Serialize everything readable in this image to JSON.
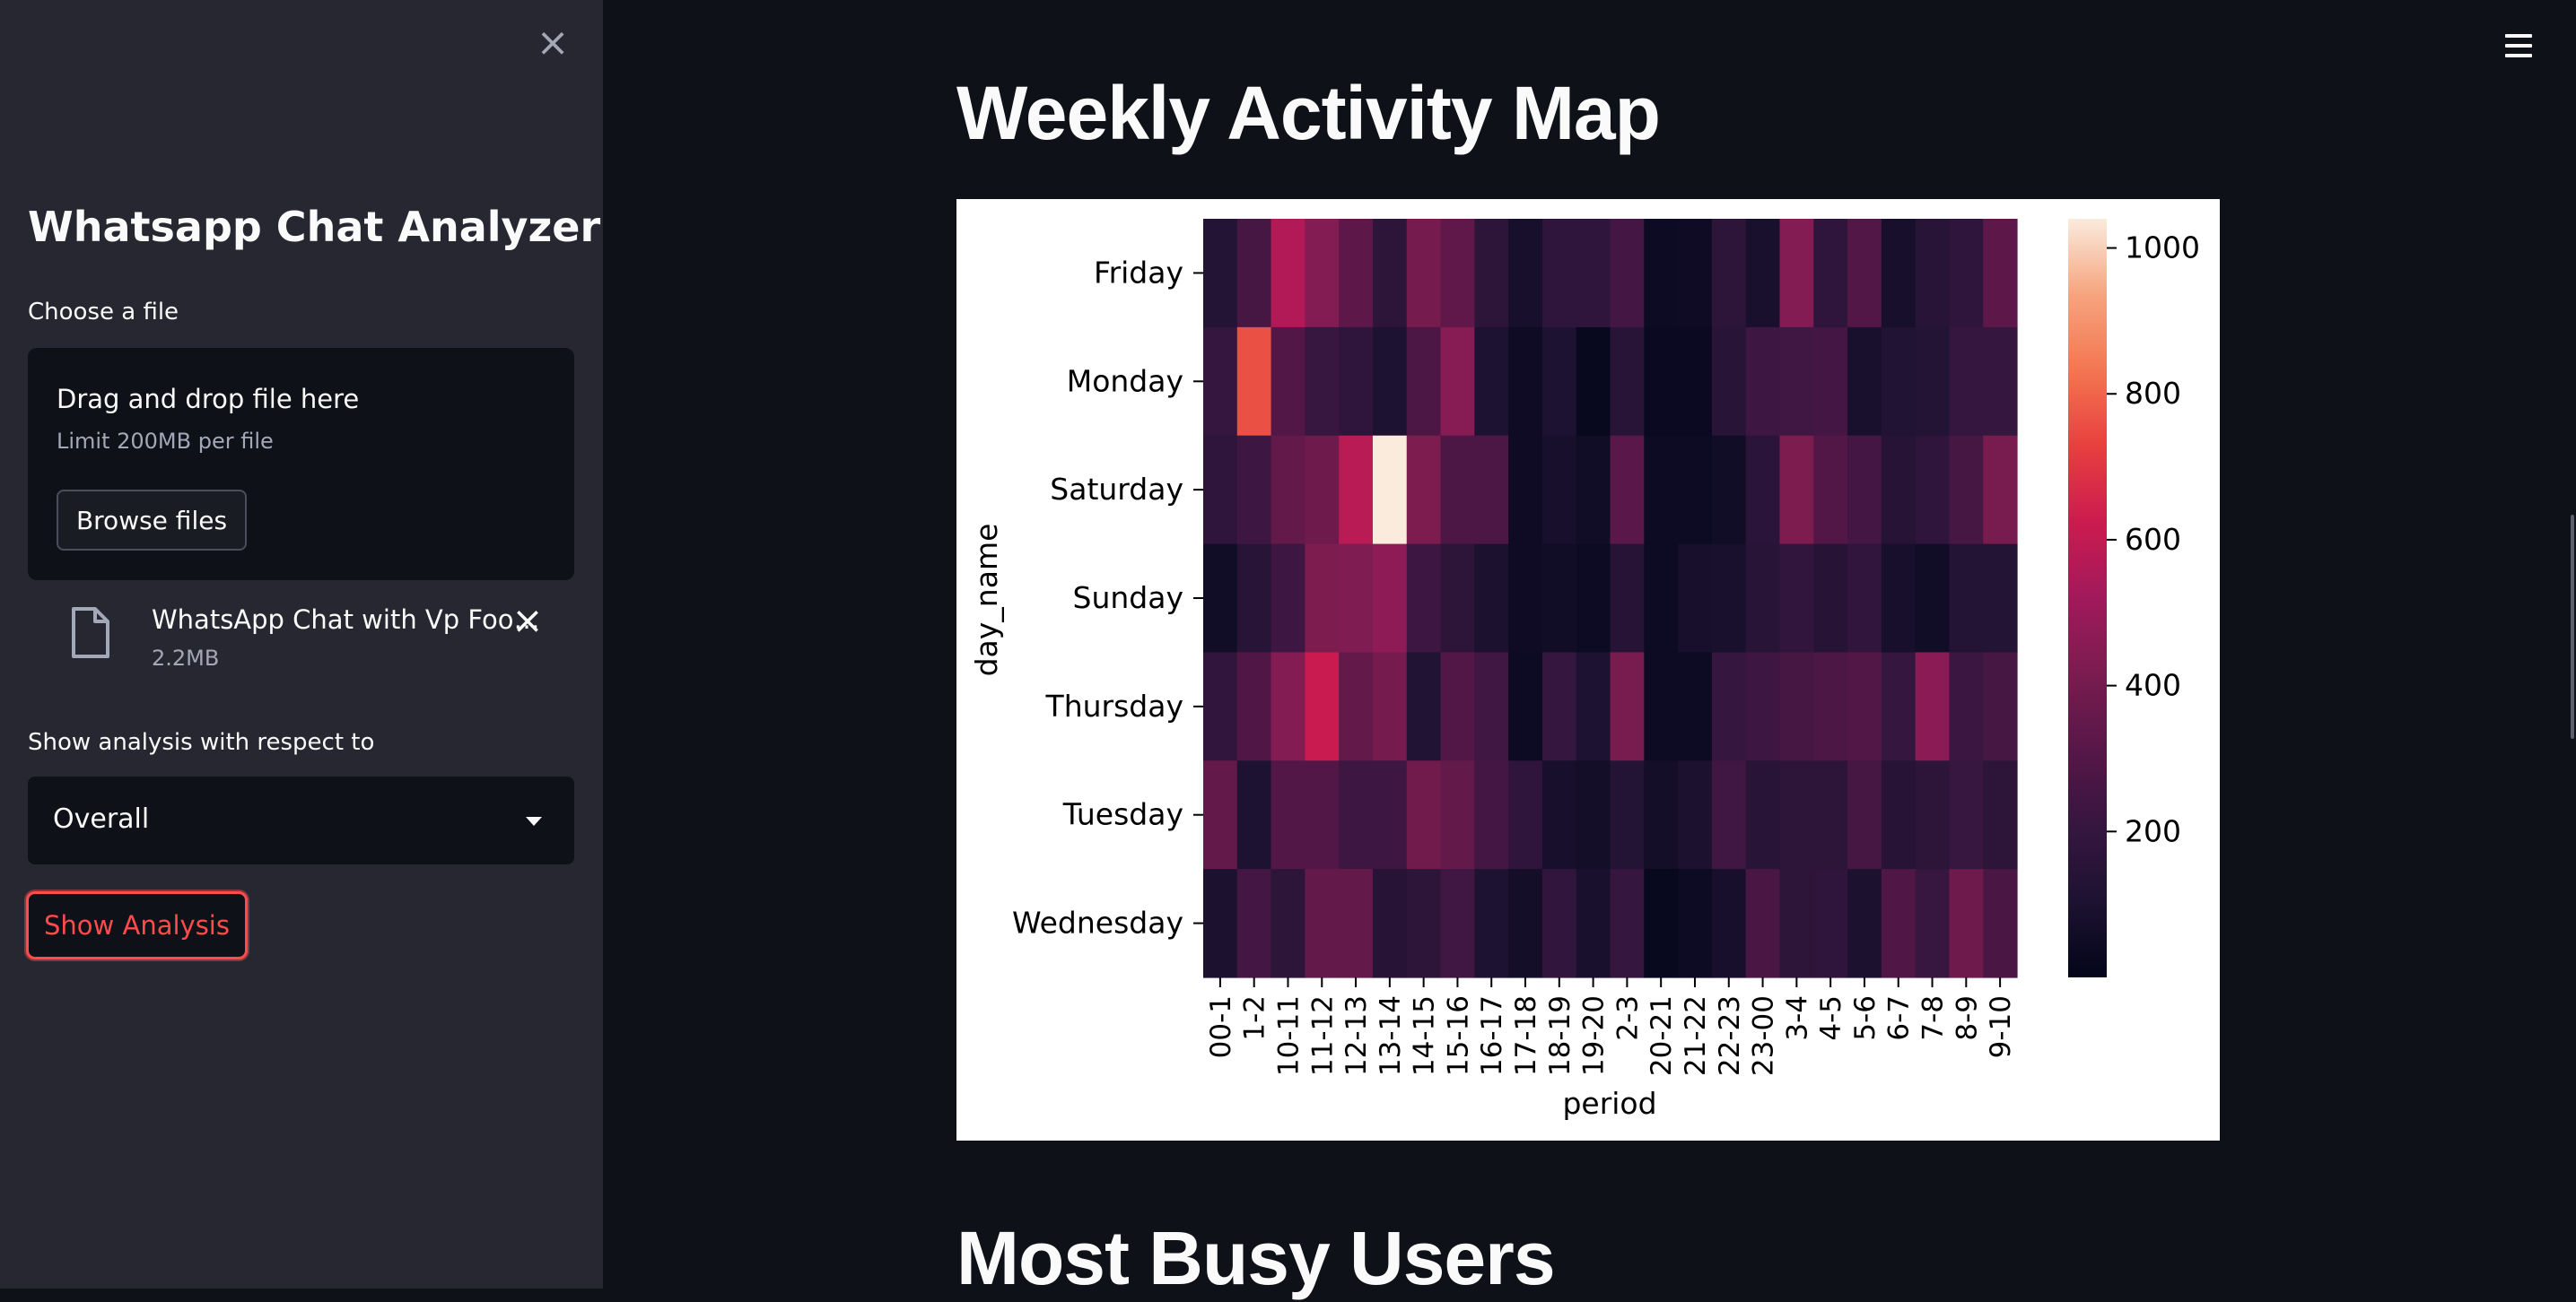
{
  "sidebar": {
    "close_icon": "close-icon",
    "title": "Whatsapp Chat Analyzer",
    "file_label": "Choose a file",
    "dropzone": {
      "title": "Drag and drop file here",
      "limit": "Limit 200MB per file",
      "browse_label": "Browse files"
    },
    "uploaded_file": {
      "icon": "file-icon",
      "name": "WhatsApp Chat with Vp Foo…",
      "size": "2.2MB"
    },
    "analysis_label": "Show analysis with respect to",
    "select_value": "Overall",
    "show_button": "Show Analysis"
  },
  "main": {
    "menu_icon": "hamburger-menu-icon",
    "heading": "Weekly Activity Map",
    "next_heading": "Most Busy Users"
  },
  "colors": {
    "background": "#0e1117",
    "sidebar": "#262730",
    "accent": "#ff4b4b"
  },
  "chart_data": {
    "type": "heatmap",
    "title": "",
    "xlabel": "period",
    "ylabel": "day_name",
    "x": [
      "00-1",
      "1-2",
      "10-11",
      "11-12",
      "12-13",
      "13-14",
      "14-15",
      "15-16",
      "16-17",
      "17-18",
      "18-19",
      "19-20",
      "2-3",
      "20-21",
      "21-22",
      "22-23",
      "23-00",
      "3-4",
      "4-5",
      "5-6",
      "6-7",
      "7-8",
      "8-9",
      "9-10"
    ],
    "y": [
      "Friday",
      "Monday",
      "Saturday",
      "Sunday",
      "Thursday",
      "Tuesday",
      "Wednesday"
    ],
    "values": [
      [
        130,
        260,
        560,
        440,
        330,
        170,
        400,
        340,
        170,
        80,
        180,
        180,
        250,
        40,
        50,
        170,
        90,
        440,
        180,
        300,
        80,
        150,
        180,
        330
      ],
      [
        200,
        760,
        300,
        210,
        180,
        110,
        280,
        450,
        110,
        50,
        110,
        20,
        150,
        30,
        30,
        150,
        230,
        240,
        250,
        90,
        120,
        130,
        200,
        200
      ],
      [
        180,
        230,
        350,
        380,
        580,
        1040,
        420,
        280,
        280,
        50,
        80,
        60,
        320,
        40,
        40,
        60,
        160,
        420,
        300,
        250,
        140,
        180,
        260,
        410
      ],
      [
        60,
        150,
        230,
        420,
        430,
        470,
        230,
        170,
        100,
        50,
        60,
        40,
        140,
        40,
        80,
        90,
        150,
        190,
        140,
        190,
        80,
        60,
        130,
        130
      ],
      [
        190,
        290,
        440,
        620,
        350,
        400,
        120,
        300,
        240,
        40,
        200,
        110,
        410,
        40,
        40,
        200,
        230,
        260,
        280,
        300,
        200,
        460,
        220,
        260
      ],
      [
        350,
        110,
        300,
        300,
        230,
        230,
        390,
        350,
        250,
        180,
        80,
        70,
        130,
        70,
        100,
        240,
        150,
        170,
        170,
        260,
        140,
        170,
        210,
        170
      ],
      [
        100,
        250,
        170,
        350,
        350,
        140,
        170,
        240,
        110,
        70,
        190,
        90,
        200,
        20,
        40,
        80,
        270,
        170,
        180,
        100,
        290,
        210,
        380,
        270
      ]
    ],
    "colorbar": {
      "min": 0,
      "max": 1040,
      "ticks": [
        200,
        400,
        600,
        800,
        1000
      ],
      "colormap": "rocket"
    }
  }
}
